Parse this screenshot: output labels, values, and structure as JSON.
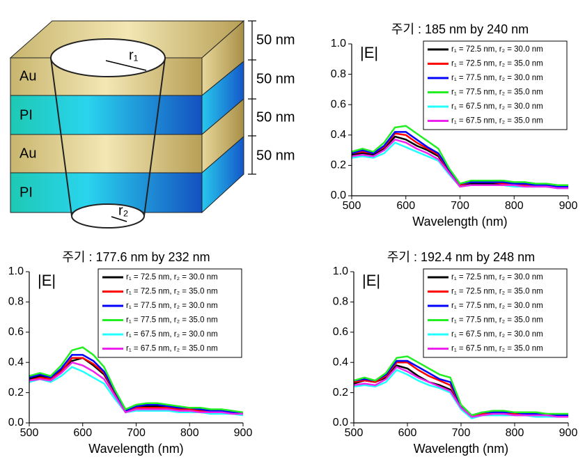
{
  "diagram": {
    "layers": [
      "Au",
      "PI",
      "Au",
      "PI"
    ],
    "radii": [
      "r₁",
      "r₂"
    ],
    "thicknesses": [
      "50 nm",
      "50 nm",
      "50 nm",
      "50 nm"
    ]
  },
  "chart_data": [
    {
      "type": "line",
      "title": "주기 : 185 nm by 240 nm",
      "ylabel": "|E|",
      "xlabel": "Wavelength (nm)",
      "x": [
        500,
        520,
        540,
        560,
        580,
        600,
        620,
        640,
        660,
        680,
        700,
        720,
        740,
        760,
        780,
        800,
        820,
        840,
        860,
        880,
        900
      ],
      "series": [
        {
          "name": "r₁ = 72.5 nm, r₂ = 30.0 nm",
          "color": "#000000",
          "values": [
            0.27,
            0.28,
            0.27,
            0.31,
            0.39,
            0.37,
            0.33,
            0.3,
            0.26,
            0.16,
            0.07,
            0.08,
            0.08,
            0.08,
            0.08,
            0.07,
            0.07,
            0.07,
            0.06,
            0.06,
            0.05
          ]
        },
        {
          "name": "r₁ = 72.5 nm, r₂ = 35.0 nm",
          "color": "#ff0000",
          "values": [
            0.28,
            0.29,
            0.28,
            0.32,
            0.41,
            0.4,
            0.35,
            0.31,
            0.27,
            0.16,
            0.07,
            0.09,
            0.09,
            0.09,
            0.08,
            0.08,
            0.07,
            0.07,
            0.07,
            0.06,
            0.06
          ]
        },
        {
          "name": "r₁ = 77.5 nm, r₂ = 30.0 nm",
          "color": "#0000ff",
          "values": [
            0.28,
            0.3,
            0.28,
            0.33,
            0.42,
            0.42,
            0.37,
            0.32,
            0.28,
            0.17,
            0.08,
            0.09,
            0.09,
            0.09,
            0.09,
            0.08,
            0.08,
            0.07,
            0.07,
            0.06,
            0.06
          ]
        },
        {
          "name": "r₁ = 77.5 nm, r₂ = 35.0 nm",
          "color": "#22ee22",
          "values": [
            0.29,
            0.31,
            0.29,
            0.35,
            0.45,
            0.46,
            0.41,
            0.36,
            0.31,
            0.18,
            0.08,
            0.1,
            0.1,
            0.1,
            0.1,
            0.09,
            0.09,
            0.08,
            0.08,
            0.07,
            0.07
          ]
        },
        {
          "name": "r₁ = 67.5 nm, r₂ = 30.0 nm",
          "color": "#22ffff",
          "values": [
            0.25,
            0.26,
            0.25,
            0.28,
            0.35,
            0.32,
            0.29,
            0.26,
            0.23,
            0.14,
            0.06,
            0.07,
            0.07,
            0.07,
            0.07,
            0.06,
            0.06,
            0.06,
            0.06,
            0.05,
            0.05
          ]
        },
        {
          "name": "r₁ = 67.5 nm, r₂ = 35.0 nm",
          "color": "#ee22ee",
          "values": [
            0.26,
            0.27,
            0.26,
            0.3,
            0.37,
            0.35,
            0.31,
            0.28,
            0.24,
            0.15,
            0.06,
            0.07,
            0.07,
            0.07,
            0.07,
            0.07,
            0.06,
            0.06,
            0.06,
            0.05,
            0.05
          ]
        }
      ],
      "xlim": [
        500,
        900
      ],
      "xticks": [
        500,
        600,
        700,
        800,
        900
      ],
      "ylim": [
        0,
        1
      ],
      "yticks": [
        {
          "value": 0,
          "label": "0.0"
        },
        0.2,
        0.4,
        0.6,
        0.8,
        {
          "value": 1,
          "label": "1.0"
        }
      ],
      "legend": "upper right"
    },
    {
      "type": "line",
      "title": "주기 : 177.6 nm by 232 nm",
      "ylabel": "|E|",
      "xlabel": "Wavelength (nm)",
      "x": [
        500,
        520,
        540,
        560,
        580,
        600,
        620,
        640,
        660,
        680,
        700,
        720,
        740,
        760,
        780,
        800,
        820,
        840,
        860,
        880,
        900
      ],
      "series": [
        {
          "name": "r₁ = 72.5 nm, r₂ = 30.0 nm",
          "color": "#000000",
          "values": [
            0.29,
            0.31,
            0.3,
            0.35,
            0.41,
            0.43,
            0.38,
            0.32,
            0.2,
            0.08,
            0.1,
            0.11,
            0.11,
            0.1,
            0.1,
            0.09,
            0.09,
            0.08,
            0.08,
            0.07,
            0.07
          ]
        },
        {
          "name": "r₁ = 72.5 nm, r₂ = 35.0 nm",
          "color": "#ff0000",
          "values": [
            0.28,
            0.3,
            0.29,
            0.34,
            0.43,
            0.43,
            0.39,
            0.33,
            0.2,
            0.08,
            0.1,
            0.1,
            0.1,
            0.1,
            0.09,
            0.09,
            0.08,
            0.08,
            0.07,
            0.07,
            0.06
          ]
        },
        {
          "name": "r₁ = 77.5 nm, r₂ = 30.0 nm",
          "color": "#0000ff",
          "values": [
            0.3,
            0.32,
            0.3,
            0.36,
            0.45,
            0.45,
            0.41,
            0.34,
            0.21,
            0.08,
            0.11,
            0.12,
            0.12,
            0.11,
            0.1,
            0.1,
            0.09,
            0.08,
            0.08,
            0.07,
            0.07
          ]
        },
        {
          "name": "r₁ = 77.5 nm, r₂ = 35.0 nm",
          "color": "#22ee22",
          "values": [
            0.31,
            0.33,
            0.31,
            0.38,
            0.48,
            0.5,
            0.45,
            0.37,
            0.22,
            0.09,
            0.12,
            0.13,
            0.13,
            0.12,
            0.11,
            0.1,
            0.1,
            0.09,
            0.09,
            0.08,
            0.07
          ]
        },
        {
          "name": "r₁ = 67.5 nm, r₂ = 30.0 nm",
          "color": "#22ffff",
          "values": [
            0.27,
            0.29,
            0.27,
            0.31,
            0.37,
            0.34,
            0.3,
            0.26,
            0.16,
            0.07,
            0.08,
            0.08,
            0.08,
            0.08,
            0.07,
            0.07,
            0.07,
            0.06,
            0.06,
            0.06,
            0.05
          ]
        },
        {
          "name": "r₁ = 67.5 nm, r₂ = 35.0 nm",
          "color": "#ee22ee",
          "values": [
            0.28,
            0.29,
            0.28,
            0.33,
            0.4,
            0.38,
            0.34,
            0.29,
            0.18,
            0.07,
            0.09,
            0.09,
            0.09,
            0.09,
            0.08,
            0.08,
            0.07,
            0.07,
            0.07,
            0.06,
            0.06
          ]
        }
      ],
      "xlim": [
        500,
        900
      ],
      "xticks": [
        500,
        600,
        700,
        800,
        900
      ],
      "ylim": [
        0,
        1
      ],
      "yticks": [
        {
          "value": 0,
          "label": "0.0"
        },
        0.2,
        0.4,
        0.6,
        0.8,
        {
          "value": 1,
          "label": "1.0"
        }
      ],
      "legend": "upper right"
    },
    {
      "type": "line",
      "title": "주기 : 192.4 nm by 248 nm",
      "ylabel": "|E|",
      "xlabel": "Wavelength (nm)",
      "x": [
        500,
        520,
        540,
        560,
        580,
        600,
        620,
        640,
        660,
        680,
        700,
        720,
        740,
        760,
        780,
        800,
        820,
        840,
        860,
        880,
        900
      ],
      "series": [
        {
          "name": "r₁ = 72.5 nm, r₂ = 30.0 nm",
          "color": "#000000",
          "values": [
            0.26,
            0.28,
            0.27,
            0.3,
            0.38,
            0.36,
            0.31,
            0.27,
            0.25,
            0.22,
            0.1,
            0.04,
            0.06,
            0.06,
            0.06,
            0.06,
            0.05,
            0.05,
            0.05,
            0.05,
            0.04
          ]
        },
        {
          "name": "r₁ = 72.5 nm, r₂ = 35.0 nm",
          "color": "#ff0000",
          "values": [
            0.27,
            0.28,
            0.27,
            0.31,
            0.4,
            0.4,
            0.35,
            0.31,
            0.28,
            0.25,
            0.11,
            0.04,
            0.06,
            0.07,
            0.07,
            0.06,
            0.06,
            0.06,
            0.05,
            0.05,
            0.05
          ]
        },
        {
          "name": "r₁ = 77.5 nm, r₂ = 30.0 nm",
          "color": "#0000ff",
          "values": [
            0.28,
            0.29,
            0.28,
            0.32,
            0.41,
            0.41,
            0.37,
            0.33,
            0.29,
            0.27,
            0.11,
            0.05,
            0.07,
            0.07,
            0.07,
            0.07,
            0.06,
            0.06,
            0.06,
            0.05,
            0.05
          ]
        },
        {
          "name": "r₁ = 77.5 nm, r₂ = 35.0 nm",
          "color": "#22ee22",
          "values": [
            0.28,
            0.3,
            0.28,
            0.33,
            0.43,
            0.44,
            0.4,
            0.36,
            0.32,
            0.3,
            0.12,
            0.05,
            0.07,
            0.08,
            0.08,
            0.07,
            0.07,
            0.07,
            0.06,
            0.06,
            0.06
          ]
        },
        {
          "name": "r₁ = 67.5 nm, r₂ = 30.0 nm",
          "color": "#22ffff",
          "values": [
            0.24,
            0.25,
            0.24,
            0.27,
            0.35,
            0.32,
            0.28,
            0.25,
            0.23,
            0.2,
            0.09,
            0.03,
            0.05,
            0.05,
            0.05,
            0.05,
            0.05,
            0.04,
            0.04,
            0.04,
            0.04
          ]
        },
        {
          "name": "r₁ = 67.5 nm, r₂ = 35.0 nm",
          "color": "#ee22ee",
          "values": [
            0.25,
            0.26,
            0.25,
            0.29,
            0.37,
            0.34,
            0.3,
            0.27,
            0.24,
            0.21,
            0.1,
            0.04,
            0.05,
            0.06,
            0.06,
            0.05,
            0.05,
            0.05,
            0.05,
            0.04,
            0.04
          ]
        }
      ],
      "xlim": [
        500,
        900
      ],
      "xticks": [
        500,
        600,
        700,
        800,
        900
      ],
      "ylim": [
        0,
        1
      ],
      "yticks": [
        {
          "value": 0,
          "label": "0.0"
        },
        0.2,
        0.4,
        0.6,
        0.8,
        {
          "value": 1,
          "label": "1.0"
        }
      ],
      "legend": "upper right"
    }
  ]
}
